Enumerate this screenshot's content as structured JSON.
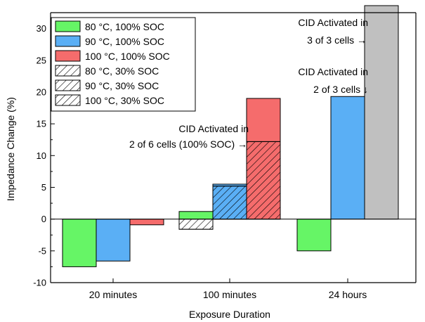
{
  "chart_data": {
    "type": "bar",
    "xlabel": "Exposure Duration",
    "ylabel": "Impedance Change (%)",
    "ylim": [
      -10,
      32.5
    ],
    "yticks": [
      -10,
      -5,
      0,
      5,
      10,
      15,
      20,
      25,
      30
    ],
    "categories": [
      "20 minutes",
      "100 minutes",
      "24 hours"
    ],
    "colors": {
      "80": "#66f566",
      "90": "#5aaff5",
      "100": "#f56c6c",
      "cid": "#c0c0c0"
    },
    "legend": {
      "position": "top-left",
      "entries": [
        {
          "label": "80 °C, 100% SOC",
          "temp": "80",
          "pattern": "solid"
        },
        {
          "label": "90 °C, 100% SOC",
          "temp": "90",
          "pattern": "solid"
        },
        {
          "label": "100 °C, 100% SOC",
          "temp": "100",
          "pattern": "solid"
        },
        {
          "label": "80 °C, 30% SOC",
          "temp": "80",
          "pattern": "hatch"
        },
        {
          "label": "90 °C, 30% SOC",
          "temp": "90",
          "pattern": "hatch"
        },
        {
          "label": "100 °C, 30% SOC",
          "temp": "100",
          "pattern": "hatch"
        }
      ]
    },
    "series": [
      {
        "name": "80 °C, 100% SOC",
        "values": [
          -7.5,
          1.2,
          -5.0
        ]
      },
      {
        "name": "90 °C, 100% SOC",
        "values": [
          -6.6,
          5.5,
          19.3
        ]
      },
      {
        "name": "100 °C, 100% SOC",
        "values": [
          -0.9,
          19.0,
          null
        ]
      },
      {
        "name": "80 °C, 30% SOC",
        "values": [
          null,
          -1.6,
          null
        ]
      },
      {
        "name": "90 °C, 30% SOC",
        "values": [
          null,
          5.2,
          null
        ]
      },
      {
        "name": "100 °C, 30% SOC",
        "values": [
          null,
          12.2,
          null
        ]
      }
    ],
    "cid_bar": {
      "category": "24 hours",
      "slot": 2,
      "value": 35
    },
    "annotations": [
      {
        "lines": [
          "CID Activated in",
          "2 of 6 cells (100% SOC) →"
        ]
      },
      {
        "lines": [
          "CID Activated in",
          "3 of 3 cells →"
        ]
      },
      {
        "lines": [
          "CID Activated in",
          "2 of 3 cells ↓"
        ]
      }
    ]
  }
}
